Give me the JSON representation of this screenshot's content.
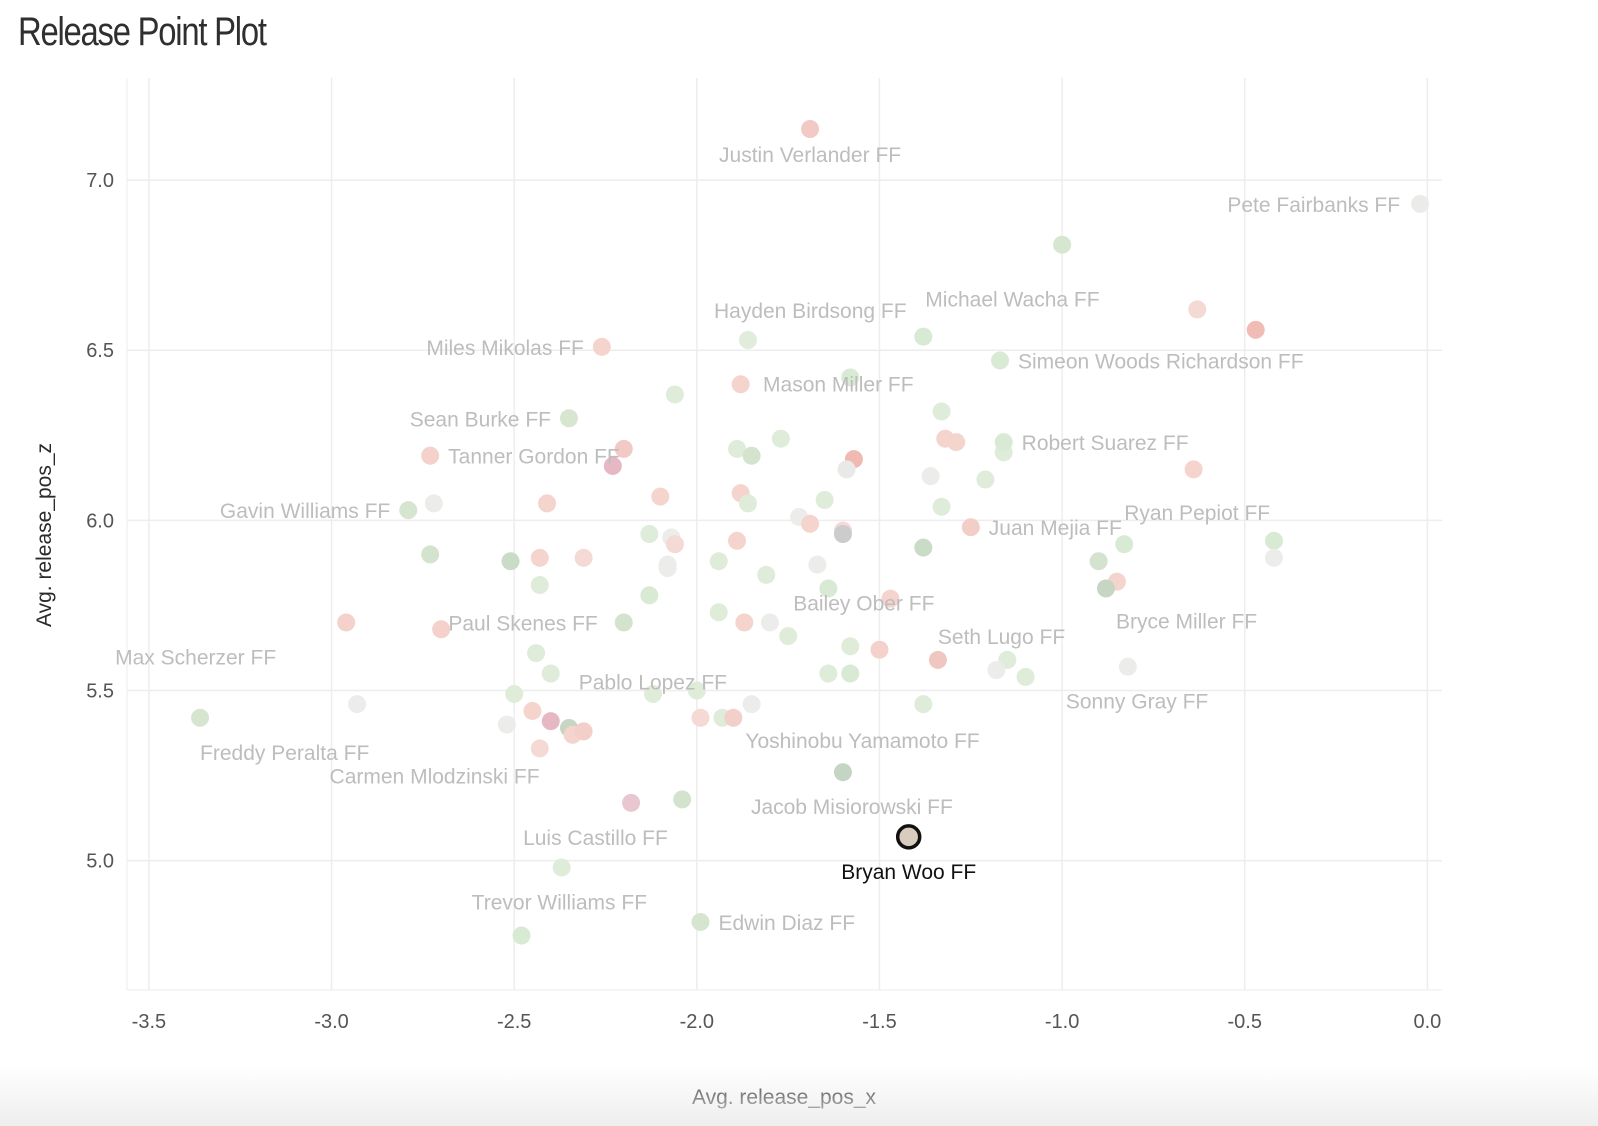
{
  "title": "Release Point Plot",
  "chart_data": {
    "type": "scatter",
    "title": "Release Point Plot",
    "xlabel": "Avg. release_pos_x",
    "ylabel": "Avg. release_pos_z",
    "xlim": [
      -3.56,
      0.04
    ],
    "ylim": [
      4.62,
      7.3
    ],
    "xticks": [
      "-3.5",
      "-3.0",
      "-2.5",
      "-2.0",
      "-1.5",
      "-1.0",
      "-0.5",
      "0.0"
    ],
    "yticks": [
      "5.0",
      "5.5",
      "6.0",
      "6.5",
      "7.0"
    ],
    "grid": true,
    "highlight": {
      "x": -1.42,
      "y": 5.07,
      "label": "Bryan Woo FF",
      "color": "#d8ccbf"
    },
    "labeled_points": [
      {
        "x": -1.69,
        "y": 7.15,
        "label": "Justin Verlander FF",
        "color": "#f2c9c4"
      },
      {
        "x": -0.02,
        "y": 6.93,
        "label": "Pete Fairbanks FF",
        "color": "#ebebe9"
      },
      {
        "x": -1.86,
        "y": 6.53,
        "label": "Hayden Birdsong FF",
        "color": "#e1ecdc"
      },
      {
        "x": -1.38,
        "y": 6.54,
        "label": "Michael Wacha FF",
        "color": "#d9ead4"
      },
      {
        "x": -2.26,
        "y": 6.51,
        "label": "Miles Mikolas FF",
        "color": "#f4d4cd"
      },
      {
        "x": -1.17,
        "y": 6.47,
        "label": "Simeon Woods Richardson FF",
        "color": "#d9ead4"
      },
      {
        "x": -2.35,
        "y": 6.3,
        "label": "Sean Burke FF",
        "color": "#d6e6d1"
      },
      {
        "x": -1.33,
        "y": 6.32,
        "label": "Mason Miller FF",
        "color": "#dfecd9"
      },
      {
        "x": -2.73,
        "y": 6.19,
        "label": "Tanner Gordon FF",
        "color": "#f4d1ca"
      },
      {
        "x": -1.16,
        "y": 6.23,
        "label": "Robert Suarez FF",
        "color": "#d9ead4"
      },
      {
        "x": -2.79,
        "y": 6.03,
        "label": "Gavin Williams FF",
        "color": "#d5e5d0"
      },
      {
        "x": -1.25,
        "y": 5.98,
        "label": "Juan Mejia FF",
        "color": "#f2cec8"
      },
      {
        "x": -0.83,
        "y": 5.93,
        "label": "Ryan Pepiot FF",
        "color": "#d9ead4"
      },
      {
        "x": -1.47,
        "y": 5.77,
        "label": "Bailey Ober FF",
        "color": "#f4d4cd"
      },
      {
        "x": -0.88,
        "y": 5.8,
        "label": "Bryce Miller FF",
        "color": "#c6d6c3"
      },
      {
        "x": -2.2,
        "y": 5.7,
        "label": "Paul Skenes FF",
        "color": "#d3e3ce"
      },
      {
        "x": -1.34,
        "y": 5.59,
        "label": "Seth Lugo FF",
        "color": "#f0c6c0"
      },
      {
        "x": -2.96,
        "y": 5.7,
        "label": "Max Scherzer FF",
        "color": "#f4d1ca"
      },
      {
        "x": -2.4,
        "y": 5.55,
        "label": "Pablo Lopez FF",
        "color": "#dfecd9"
      },
      {
        "x": -0.82,
        "y": 5.57,
        "label": "Sonny Gray FF",
        "color": "#ececea"
      },
      {
        "x": -3.36,
        "y": 5.42,
        "label": "Freddy Peralta FF",
        "color": "#d5e5d0"
      },
      {
        "x": -1.9,
        "y": 5.42,
        "label": "Yoshinobu Yamamoto FF",
        "color": "#f3cfc9"
      },
      {
        "x": -2.31,
        "y": 5.38,
        "label": "Carmen Mlodzinski FF",
        "color": "#f3cfc9"
      },
      {
        "x": -1.6,
        "y": 5.26,
        "label": "Jacob Misiorowski FF",
        "color": "#c4d6c3"
      },
      {
        "x": -2.18,
        "y": 5.17,
        "label": "Luis Castillo FF",
        "color": "#e8c7d0"
      },
      {
        "x": -2.37,
        "y": 4.98,
        "label": "Trevor Williams FF",
        "color": "#dfecd9"
      },
      {
        "x": -1.99,
        "y": 4.82,
        "label": "Edwin Diaz FF",
        "color": "#d5e5d0"
      },
      {
        "x": -2.48,
        "y": 4.78,
        "label": "",
        "color": "#d9ead4"
      }
    ],
    "points": [
      {
        "x": -1.0,
        "y": 6.81,
        "color": "#d6e6d1"
      },
      {
        "x": -0.63,
        "y": 6.62,
        "color": "#f4d9d4"
      },
      {
        "x": -0.47,
        "y": 6.56,
        "color": "#f0bcb5"
      },
      {
        "x": -2.06,
        "y": 6.37,
        "color": "#dfecd9"
      },
      {
        "x": -1.88,
        "y": 6.4,
        "color": "#f4d4cd"
      },
      {
        "x": -1.58,
        "y": 6.42,
        "color": "#d9ead4"
      },
      {
        "x": -1.77,
        "y": 6.24,
        "color": "#dfecd9"
      },
      {
        "x": -1.89,
        "y": 6.21,
        "color": "#dfecd9"
      },
      {
        "x": -1.85,
        "y": 6.19,
        "color": "#d3e3ce"
      },
      {
        "x": -2.2,
        "y": 6.21,
        "color": "#f2c9c4"
      },
      {
        "x": -2.23,
        "y": 6.16,
        "color": "#e6b8c4"
      },
      {
        "x": -1.57,
        "y": 6.18,
        "color": "#f0b9b2"
      },
      {
        "x": -1.59,
        "y": 6.15,
        "color": "#e9e9e7"
      },
      {
        "x": -1.32,
        "y": 6.24,
        "color": "#f4d4cd"
      },
      {
        "x": -1.29,
        "y": 6.23,
        "color": "#f4d4cd"
      },
      {
        "x": -1.36,
        "y": 6.13,
        "color": "#ececea"
      },
      {
        "x": -1.21,
        "y": 6.12,
        "color": "#dfecd9"
      },
      {
        "x": -1.16,
        "y": 6.2,
        "color": "#dfecd9"
      },
      {
        "x": -0.64,
        "y": 6.15,
        "color": "#f4d4cd"
      },
      {
        "x": -2.72,
        "y": 6.05,
        "color": "#ececea"
      },
      {
        "x": -2.41,
        "y": 6.05,
        "color": "#f4d4cd"
      },
      {
        "x": -2.1,
        "y": 6.07,
        "color": "#f4d4cd"
      },
      {
        "x": -1.88,
        "y": 6.08,
        "color": "#f4d4cd"
      },
      {
        "x": -1.86,
        "y": 6.05,
        "color": "#dfecd9"
      },
      {
        "x": -1.65,
        "y": 6.06,
        "color": "#dfecd9"
      },
      {
        "x": -1.33,
        "y": 6.04,
        "color": "#dfecd9"
      },
      {
        "x": -1.72,
        "y": 6.01,
        "color": "#ececea"
      },
      {
        "x": -1.69,
        "y": 5.99,
        "color": "#f4d4cd"
      },
      {
        "x": -1.6,
        "y": 5.97,
        "color": "#f4d9d4"
      },
      {
        "x": -1.6,
        "y": 5.96,
        "color": "#cccccc"
      },
      {
        "x": -2.13,
        "y": 5.96,
        "color": "#dfecd9"
      },
      {
        "x": -2.07,
        "y": 5.95,
        "color": "#ececea"
      },
      {
        "x": -2.06,
        "y": 5.93,
        "color": "#f4d9d4"
      },
      {
        "x": -1.89,
        "y": 5.94,
        "color": "#f4d4cd"
      },
      {
        "x": -1.38,
        "y": 5.92,
        "color": "#c9dcc6"
      },
      {
        "x": -2.73,
        "y": 5.9,
        "color": "#d3e3ce"
      },
      {
        "x": -2.51,
        "y": 5.88,
        "color": "#c9dcc6"
      },
      {
        "x": -2.43,
        "y": 5.89,
        "color": "#f4d4cd"
      },
      {
        "x": -2.31,
        "y": 5.89,
        "color": "#f4d9d4"
      },
      {
        "x": -2.08,
        "y": 5.87,
        "color": "#ececea"
      },
      {
        "x": -2.08,
        "y": 5.86,
        "color": "#ececea"
      },
      {
        "x": -1.94,
        "y": 5.88,
        "color": "#dfecd9"
      },
      {
        "x": -1.81,
        "y": 5.84,
        "color": "#dfecd9"
      },
      {
        "x": -1.67,
        "y": 5.87,
        "color": "#ececea"
      },
      {
        "x": -1.64,
        "y": 5.8,
        "color": "#d9ead4"
      },
      {
        "x": -0.9,
        "y": 5.88,
        "color": "#d3e3ce"
      },
      {
        "x": -0.85,
        "y": 5.82,
        "color": "#f4d4cd"
      },
      {
        "x": -0.42,
        "y": 5.94,
        "color": "#d9ead4"
      },
      {
        "x": -0.42,
        "y": 5.89,
        "color": "#ececea"
      },
      {
        "x": -2.43,
        "y": 5.81,
        "color": "#dfecd9"
      },
      {
        "x": -2.13,
        "y": 5.78,
        "color": "#d9ead4"
      },
      {
        "x": -1.94,
        "y": 5.73,
        "color": "#dfecd9"
      },
      {
        "x": -1.87,
        "y": 5.7,
        "color": "#f4d4cd"
      },
      {
        "x": -1.8,
        "y": 5.7,
        "color": "#ececea"
      },
      {
        "x": -1.75,
        "y": 5.66,
        "color": "#dfecd9"
      },
      {
        "x": -2.7,
        "y": 5.68,
        "color": "#f4d1ca"
      },
      {
        "x": -2.44,
        "y": 5.61,
        "color": "#dfecd9"
      },
      {
        "x": -1.58,
        "y": 5.63,
        "color": "#dfecd9"
      },
      {
        "x": -1.5,
        "y": 5.62,
        "color": "#f4d1ca"
      },
      {
        "x": -1.64,
        "y": 5.55,
        "color": "#dfecd9"
      },
      {
        "x": -1.58,
        "y": 5.55,
        "color": "#d9ead4"
      },
      {
        "x": -1.15,
        "y": 5.59,
        "color": "#dfecd9"
      },
      {
        "x": -1.18,
        "y": 5.56,
        "color": "#ececea"
      },
      {
        "x": -1.1,
        "y": 5.54,
        "color": "#dfecd9"
      },
      {
        "x": -2.93,
        "y": 5.46,
        "color": "#ececea"
      },
      {
        "x": -2.5,
        "y": 5.49,
        "color": "#dfecd9"
      },
      {
        "x": -2.12,
        "y": 5.49,
        "color": "#dfecd9"
      },
      {
        "x": -2.0,
        "y": 5.5,
        "color": "#dfecd9"
      },
      {
        "x": -1.85,
        "y": 5.46,
        "color": "#ececea"
      },
      {
        "x": -1.38,
        "y": 5.46,
        "color": "#dfecd9"
      },
      {
        "x": -2.45,
        "y": 5.44,
        "color": "#f4d4cd"
      },
      {
        "x": -1.93,
        "y": 5.42,
        "color": "#dfecd9"
      },
      {
        "x": -1.99,
        "y": 5.42,
        "color": "#f4d9d4"
      },
      {
        "x": -2.52,
        "y": 5.4,
        "color": "#ececea"
      },
      {
        "x": -2.4,
        "y": 5.41,
        "color": "#e6b8c4"
      },
      {
        "x": -2.35,
        "y": 5.39,
        "color": "#c6d6c3"
      },
      {
        "x": -2.34,
        "y": 5.37,
        "color": "#f4d4cd"
      },
      {
        "x": -2.43,
        "y": 5.33,
        "color": "#f4d9d4"
      },
      {
        "x": -2.04,
        "y": 5.18,
        "color": "#d3e3ce"
      }
    ]
  }
}
